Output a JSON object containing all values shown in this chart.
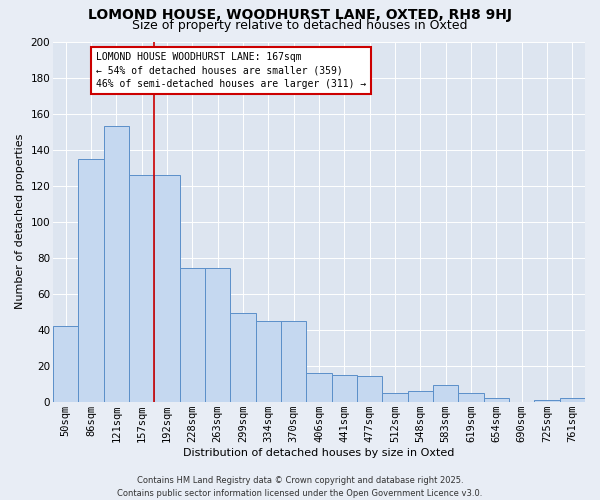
{
  "title": "LOMOND HOUSE, WOODHURST LANE, OXTED, RH8 9HJ",
  "subtitle": "Size of property relative to detached houses in Oxted",
  "xlabel": "Distribution of detached houses by size in Oxted",
  "ylabel": "Number of detached properties",
  "categories": [
    "50sqm",
    "86sqm",
    "121sqm",
    "157sqm",
    "192sqm",
    "228sqm",
    "263sqm",
    "299sqm",
    "334sqm",
    "370sqm",
    "406sqm",
    "441sqm",
    "477sqm",
    "512sqm",
    "548sqm",
    "583sqm",
    "619sqm",
    "654sqm",
    "690sqm",
    "725sqm",
    "761sqm"
  ],
  "bar_values": [
    42,
    135,
    153,
    126,
    126,
    74,
    74,
    49,
    45,
    45,
    16,
    15,
    14,
    5,
    6,
    9,
    5,
    2,
    0,
    1,
    2
  ],
  "bar_color": "#c5d8f0",
  "bar_edge_color": "#5b8fc9",
  "vline_color": "#cc0000",
  "vline_x": 3.5,
  "annotation_text": "LOMOND HOUSE WOODHURST LANE: 167sqm\n← 54% of detached houses are smaller (359)\n46% of semi-detached houses are larger (311) →",
  "footer": "Contains HM Land Registry data © Crown copyright and database right 2025.\nContains public sector information licensed under the Open Government Licence v3.0.",
  "ylim": [
    0,
    200
  ],
  "yticks": [
    0,
    20,
    40,
    60,
    80,
    100,
    120,
    140,
    160,
    180,
    200
  ],
  "fig_bg": "#e8edf5",
  "ax_bg": "#dde5f0",
  "title_fontsize": 10,
  "subtitle_fontsize": 9,
  "axis_label_fontsize": 8,
  "tick_fontsize": 7.5,
  "annotation_fontsize": 7,
  "footer_fontsize": 6
}
